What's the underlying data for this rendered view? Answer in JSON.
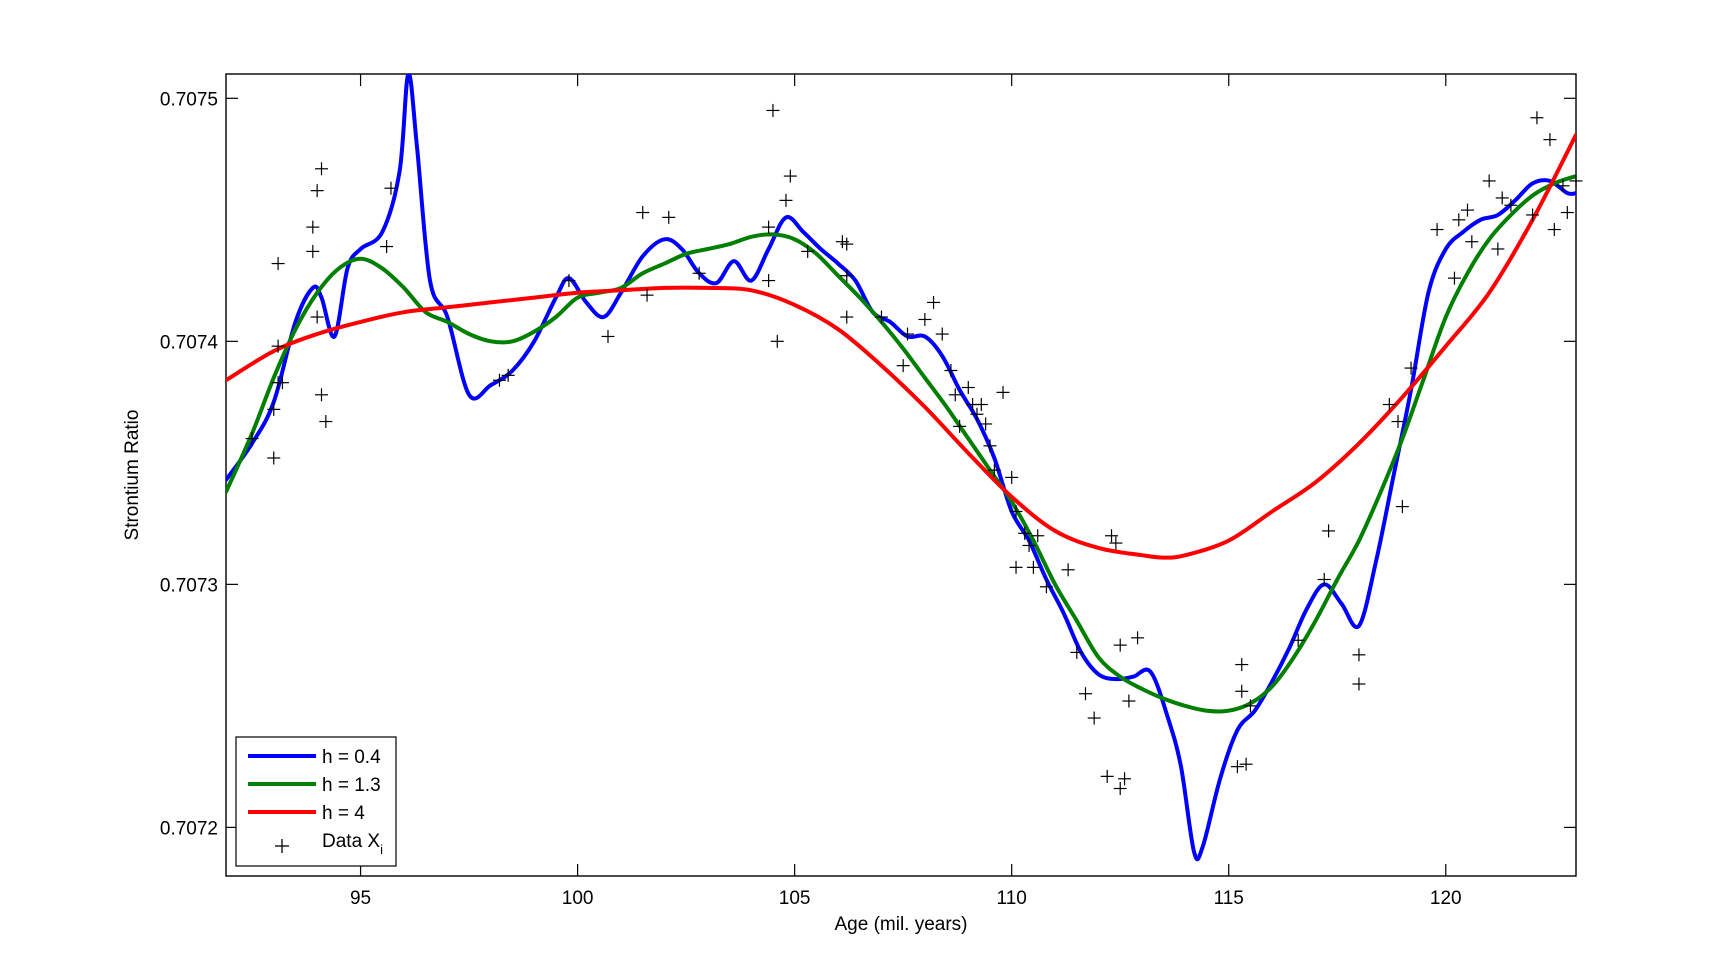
{
  "chart_data": {
    "type": "line",
    "title": "",
    "xlabel": "Age (mil. years)",
    "ylabel": "Strontium Ratio",
    "xlim": [
      91.9,
      123.0
    ],
    "ylim": [
      0.70718,
      0.70751
    ],
    "x_ticks": [
      95,
      100,
      105,
      110,
      115,
      120
    ],
    "x_tick_labels": [
      "95",
      "100",
      "105",
      "110",
      "115",
      "120"
    ],
    "y_ticks": [
      0.7072,
      0.7073,
      0.7074,
      0.7075
    ],
    "y_tick_labels": [
      "0.7072",
      "0.7073",
      "0.7074",
      "0.7075"
    ],
    "grid": false,
    "legend_position": "bottom-left",
    "legend": {
      "entries": [
        "h = 0.4",
        "h = 1.3",
        "h = 4"
      ],
      "data_label_main": "Data X",
      "data_label_sub": "i"
    },
    "series": [
      {
        "name": "h = 0.4",
        "color": "#0000ff",
        "x": [
          91.9,
          92.5,
          93.0,
          93.5,
          93.9,
          94.1,
          94.4,
          94.7,
          95.0,
          95.5,
          95.9,
          96.1,
          96.3,
          96.6,
          97.0,
          97.5,
          98.0,
          98.5,
          99.0,
          99.5,
          99.8,
          100.2,
          100.6,
          101.0,
          101.5,
          102.0,
          102.4,
          102.8,
          103.2,
          103.6,
          104.0,
          104.4,
          104.8,
          105.2,
          105.6,
          106.0,
          106.4,
          106.8,
          107.2,
          107.6,
          108.0,
          108.4,
          108.8,
          109.2,
          109.6,
          110.0,
          110.4,
          110.8,
          111.2,
          111.6,
          112.0,
          112.4,
          112.8,
          113.2,
          113.6,
          113.9,
          114.2,
          114.4,
          114.8,
          115.2,
          115.6,
          116.0,
          116.4,
          116.8,
          117.2,
          117.6,
          118.0,
          118.4,
          118.8,
          119.2,
          119.6,
          120.0,
          120.4,
          120.8,
          121.2,
          121.6,
          122.0,
          122.4,
          122.8,
          123.0
        ],
        "y": [
          0.707343,
          0.707358,
          0.707375,
          0.707408,
          0.707422,
          0.707418,
          0.707402,
          0.70743,
          0.707438,
          0.707445,
          0.70747,
          0.70751,
          0.70748,
          0.707425,
          0.70741,
          0.707378,
          0.707382,
          0.707388,
          0.7074,
          0.707418,
          0.707426,
          0.707416,
          0.70741,
          0.70742,
          0.707435,
          0.707442,
          0.707438,
          0.707428,
          0.707424,
          0.707433,
          0.707425,
          0.707438,
          0.707451,
          0.707445,
          0.707438,
          0.707432,
          0.707425,
          0.707412,
          0.707408,
          0.707402,
          0.707402,
          0.707394,
          0.70738,
          0.707368,
          0.707352,
          0.70733,
          0.707318,
          0.707302,
          0.707288,
          0.707272,
          0.707263,
          0.707261,
          0.707262,
          0.707264,
          0.707245,
          0.707225,
          0.70719,
          0.707192,
          0.70722,
          0.70724,
          0.707248,
          0.70726,
          0.707274,
          0.70729,
          0.7073,
          0.707292,
          0.707283,
          0.70731,
          0.707345,
          0.70738,
          0.70742,
          0.707438,
          0.707445,
          0.70745,
          0.707452,
          0.707458,
          0.707465,
          0.707466,
          0.707461,
          0.707461
        ]
      },
      {
        "name": "h = 1.3",
        "color": "#007f00",
        "x": [
          91.9,
          92.5,
          93.0,
          93.5,
          94.0,
          94.5,
          95.0,
          95.5,
          96.0,
          96.5,
          97.0,
          97.5,
          98.0,
          98.5,
          99.0,
          99.5,
          100.0,
          100.5,
          101.0,
          101.5,
          102.0,
          102.5,
          103.0,
          103.5,
          104.0,
          104.5,
          105.0,
          105.5,
          106.0,
          106.5,
          107.0,
          107.5,
          108.0,
          108.5,
          109.0,
          109.5,
          110.0,
          110.5,
          111.0,
          111.5,
          112.0,
          112.5,
          113.0,
          113.5,
          114.0,
          114.5,
          115.0,
          115.5,
          116.0,
          116.5,
          117.0,
          117.5,
          118.0,
          118.5,
          119.0,
          119.5,
          120.0,
          120.5,
          121.0,
          121.5,
          122.0,
          122.5,
          123.0
        ],
        "y": [
          0.707338,
          0.707362,
          0.707385,
          0.707405,
          0.70742,
          0.70743,
          0.707434,
          0.70743,
          0.707422,
          0.707412,
          0.707408,
          0.707403,
          0.7074,
          0.7074,
          0.707404,
          0.70741,
          0.707418,
          0.70742,
          0.707422,
          0.707428,
          0.707432,
          0.707436,
          0.707438,
          0.70744,
          0.707443,
          0.707444,
          0.707442,
          0.707436,
          0.707427,
          0.707418,
          0.707408,
          0.707397,
          0.707385,
          0.707373,
          0.70736,
          0.707347,
          0.707334,
          0.707318,
          0.7073,
          0.707285,
          0.70727,
          0.707262,
          0.707257,
          0.707253,
          0.70725,
          0.707248,
          0.707248,
          0.707251,
          0.707258,
          0.70727,
          0.707285,
          0.707302,
          0.707318,
          0.707338,
          0.70736,
          0.707385,
          0.70741,
          0.707428,
          0.707442,
          0.707452,
          0.70746,
          0.707465,
          0.707468
        ]
      },
      {
        "name": "h = 4",
        "color": "#ff0000",
        "x": [
          91.9,
          93.0,
          94.0,
          95.0,
          96.0,
          97.0,
          98.0,
          99.0,
          100.0,
          101.0,
          102.0,
          103.0,
          104.0,
          105.0,
          106.0,
          107.0,
          108.0,
          109.0,
          110.0,
          111.0,
          112.0,
          113.0,
          113.5,
          114.0,
          115.0,
          116.0,
          117.0,
          118.0,
          119.0,
          120.0,
          121.0,
          122.0,
          123.0
        ],
        "y": [
          0.707384,
          0.707396,
          0.707403,
          0.707408,
          0.707412,
          0.707414,
          0.707416,
          0.707418,
          0.70742,
          0.707421,
          0.707422,
          0.707422,
          0.707421,
          0.707415,
          0.707405,
          0.70739,
          0.707373,
          0.707354,
          0.707336,
          0.707322,
          0.707315,
          0.707312,
          0.707311,
          0.707312,
          0.707318,
          0.70733,
          0.707342,
          0.707358,
          0.707377,
          0.707398,
          0.70742,
          0.70745,
          0.707485
        ]
      },
      {
        "name": "Data X",
        "type": "scatter",
        "color": "#000000",
        "points": [
          [
            92.5,
            0.70736
          ],
          [
            93.0,
            0.707352
          ],
          [
            93.0,
            0.707372
          ],
          [
            93.1,
            0.707383
          ],
          [
            93.1,
            0.707398
          ],
          [
            93.1,
            0.707432
          ],
          [
            93.2,
            0.707383
          ],
          [
            93.9,
            0.707437
          ],
          [
            93.9,
            0.707447
          ],
          [
            94.0,
            0.707462
          ],
          [
            94.0,
            0.70741
          ],
          [
            94.1,
            0.707471
          ],
          [
            94.1,
            0.707378
          ],
          [
            94.2,
            0.707367
          ],
          [
            95.6,
            0.707439
          ],
          [
            95.7,
            0.707463
          ],
          [
            98.2,
            0.707384
          ],
          [
            98.4,
            0.707386
          ],
          [
            99.8,
            0.707425
          ],
          [
            100.7,
            0.707402
          ],
          [
            101.5,
            0.707453
          ],
          [
            101.6,
            0.707419
          ],
          [
            102.1,
            0.707451
          ],
          [
            102.8,
            0.707428
          ],
          [
            104.4,
            0.707425
          ],
          [
            104.4,
            0.707447
          ],
          [
            104.5,
            0.707495
          ],
          [
            104.6,
            0.7074
          ],
          [
            104.8,
            0.707458
          ],
          [
            104.9,
            0.707468
          ],
          [
            105.3,
            0.707437
          ],
          [
            106.1,
            0.707441
          ],
          [
            106.2,
            0.70744
          ],
          [
            106.2,
            0.707427
          ],
          [
            106.2,
            0.70741
          ],
          [
            107.0,
            0.70741
          ],
          [
            107.5,
            0.70739
          ],
          [
            107.6,
            0.707403
          ],
          [
            108.0,
            0.707409
          ],
          [
            108.2,
            0.707416
          ],
          [
            108.4,
            0.707403
          ],
          [
            108.6,
            0.707388
          ],
          [
            108.7,
            0.707378
          ],
          [
            108.8,
            0.707365
          ],
          [
            109.0,
            0.707381
          ],
          [
            109.1,
            0.707374
          ],
          [
            109.2,
            0.70737
          ],
          [
            109.3,
            0.707374
          ],
          [
            109.4,
            0.707366
          ],
          [
            109.5,
            0.707357
          ],
          [
            109.6,
            0.707347
          ],
          [
            109.8,
            0.707379
          ],
          [
            110.0,
            0.707344
          ],
          [
            110.1,
            0.70733
          ],
          [
            110.1,
            0.707307
          ],
          [
            110.3,
            0.707321
          ],
          [
            110.4,
            0.707316
          ],
          [
            110.5,
            0.707307
          ],
          [
            110.6,
            0.70732
          ],
          [
            110.8,
            0.707299
          ],
          [
            111.3,
            0.707306
          ],
          [
            111.5,
            0.707272
          ],
          [
            111.7,
            0.707255
          ],
          [
            111.9,
            0.707245
          ],
          [
            112.2,
            0.707221
          ],
          [
            112.3,
            0.70732
          ],
          [
            112.4,
            0.707317
          ],
          [
            112.5,
            0.707216
          ],
          [
            112.5,
            0.707275
          ],
          [
            112.6,
            0.70722
          ],
          [
            112.7,
            0.707252
          ],
          [
            112.9,
            0.707278
          ],
          [
            115.2,
            0.707225
          ],
          [
            115.3,
            0.707256
          ],
          [
            115.3,
            0.707267
          ],
          [
            115.4,
            0.707226
          ],
          [
            115.5,
            0.70725
          ],
          [
            116.6,
            0.707277
          ],
          [
            117.2,
            0.707302
          ],
          [
            117.3,
            0.707322
          ],
          [
            118.0,
            0.707271
          ],
          [
            118.0,
            0.707259
          ],
          [
            118.7,
            0.707374
          ],
          [
            118.9,
            0.707367
          ],
          [
            119.0,
            0.707332
          ],
          [
            119.2,
            0.707389
          ],
          [
            119.8,
            0.707446
          ],
          [
            120.2,
            0.707426
          ],
          [
            120.3,
            0.70745
          ],
          [
            120.5,
            0.707454
          ],
          [
            120.6,
            0.707441
          ],
          [
            121.0,
            0.707466
          ],
          [
            121.2,
            0.707438
          ],
          [
            121.3,
            0.707459
          ],
          [
            121.5,
            0.707456
          ],
          [
            122.0,
            0.707452
          ],
          [
            122.1,
            0.707492
          ],
          [
            122.4,
            0.707483
          ],
          [
            122.5,
            0.707446
          ],
          [
            122.7,
            0.707464
          ],
          [
            122.8,
            0.707453
          ],
          [
            123.0,
            0.707466
          ]
        ]
      }
    ]
  }
}
